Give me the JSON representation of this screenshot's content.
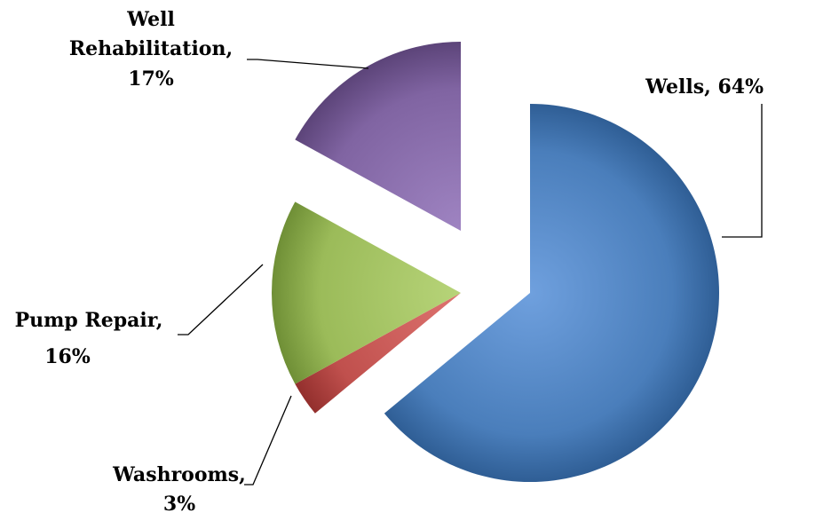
{
  "chart_data": {
    "type": "pie",
    "exploded": true,
    "title": "",
    "slices": [
      {
        "name": "Wells",
        "value": 64,
        "label_lines": [
          "Wells, 64%"
        ],
        "color": "#4a7ebb",
        "color_light": "#6fa0de",
        "color_dark": "#2f5e95"
      },
      {
        "name": "Washrooms",
        "value": 3,
        "label_lines": [
          "Washrooms,",
          "3%"
        ],
        "color": "#c0504d",
        "color_light": "#de7370",
        "color_dark": "#932f2d"
      },
      {
        "name": "Pump Repair",
        "value": 16,
        "label_lines": [
          "Pump Repair,",
          "16%"
        ],
        "color": "#9bbb59",
        "color_light": "#b7d479",
        "color_dark": "#6f8f36"
      },
      {
        "name": "Well Rehabilitation",
        "value": 17,
        "label_lines": [
          "Well",
          "Rehabilitation,",
          "17%"
        ],
        "color": "#8064a2",
        "color_light": "#9f84c2",
        "color_dark": "#5c4479"
      }
    ]
  }
}
